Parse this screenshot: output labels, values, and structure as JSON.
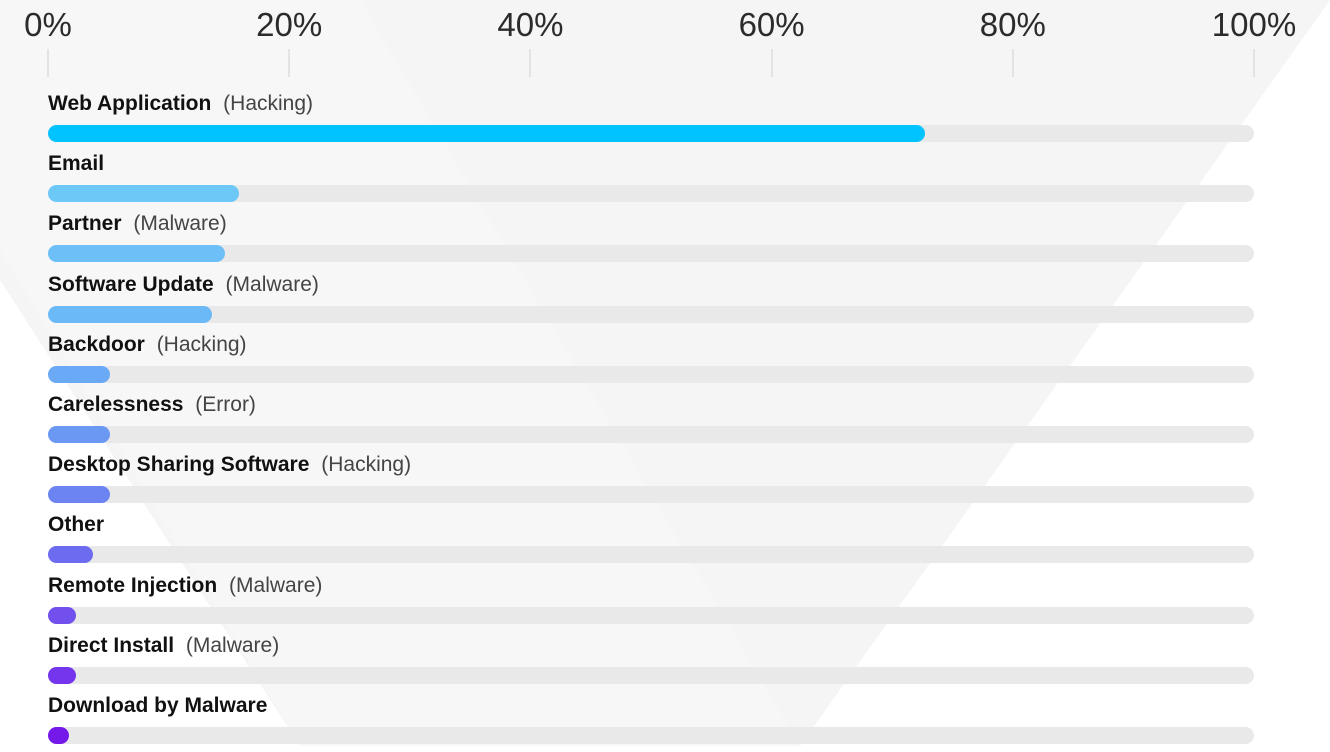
{
  "chart_data": {
    "type": "bar",
    "orientation": "horizontal",
    "axis": {
      "ticks": [
        "0%",
        "20%",
        "40%",
        "60%",
        "80%",
        "100%"
      ],
      "tick_values": [
        0,
        20,
        40,
        60,
        80,
        100
      ],
      "xlim": [
        0,
        100
      ],
      "position": "top"
    },
    "grid": false,
    "legend": "none",
    "track_color": "#e9e9e9",
    "bars": [
      {
        "category": "Web Application",
        "qualifier": "(Hacking)",
        "value": 72.7,
        "color": "#00c3ff"
      },
      {
        "category": "Email",
        "qualifier": "",
        "value": 15.8,
        "color": "#6cc8f7"
      },
      {
        "category": "Partner",
        "qualifier": "(Malware)",
        "value": 14.7,
        "color": "#6cc0f7"
      },
      {
        "category": "Software Update",
        "qualifier": "(Malware)",
        "value": 13.6,
        "color": "#6bb9f7"
      },
      {
        "category": "Backdoor",
        "qualifier": "(Hacking)",
        "value": 5.1,
        "color": "#6aa9f5"
      },
      {
        "category": "Carelessness",
        "qualifier": "(Error)",
        "value": 5.1,
        "color": "#6a98f3"
      },
      {
        "category": "Desktop Sharing Software",
        "qualifier": "(Hacking)",
        "value": 5.1,
        "color": "#6c84f1"
      },
      {
        "category": "Other",
        "qualifier": "",
        "value": 3.7,
        "color": "#6d6bef"
      },
      {
        "category": "Remote Injection",
        "qualifier": "(Malware)",
        "value": 2.3,
        "color": "#7150ed"
      },
      {
        "category": "Direct Install",
        "qualifier": "(Malware)",
        "value": 2.3,
        "color": "#7435ec"
      },
      {
        "category": "Download by Malware",
        "qualifier": "",
        "value": 1.7,
        "color": "#7519eb"
      }
    ]
  }
}
